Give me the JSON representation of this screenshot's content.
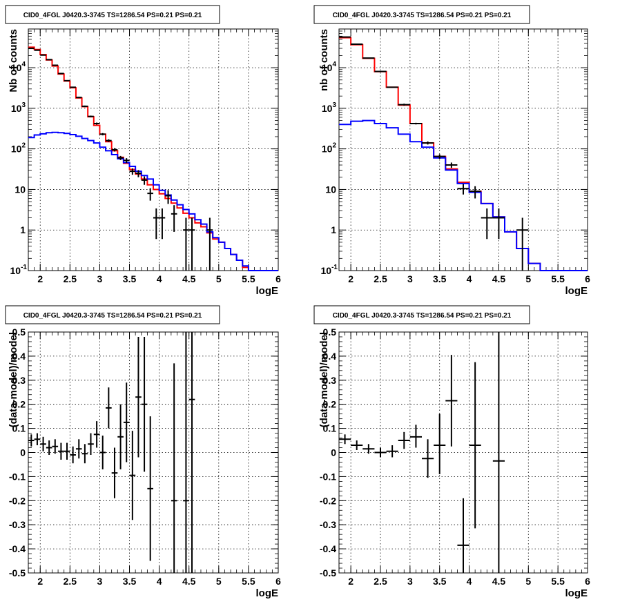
{
  "chart_data": [
    {
      "type": "line",
      "title": "CID0_4FGL J0420.3-3745 TS=1286.54 PS=0.21 PS=0.21",
      "xlabel": "logE",
      "ylabel": "Nb of counts",
      "xlim": [
        1.8,
        6.0
      ],
      "ylim": [
        0.1,
        90000
      ],
      "yscale": "log",
      "grid": true,
      "xticks": [
        "2",
        "2.5",
        "3",
        "3.5",
        "4",
        "4.5",
        "5",
        "5.5",
        "6"
      ],
      "yticks": [
        "10^-1",
        "1",
        "10",
        "10^2",
        "10^3",
        "10^4"
      ],
      "bin_width": 0.1,
      "bin_edges_start": 1.8,
      "series": [
        {
          "color": "#ff0000",
          "values": [
            32000,
            28000,
            21000,
            15500,
            11000,
            7000,
            4700,
            3200,
            1800,
            1100,
            620,
            380,
            230,
            150,
            90,
            62,
            44,
            31,
            24,
            18,
            13,
            10,
            7.8,
            6.0,
            4.6,
            3.5,
            2.6,
            2.0,
            1.5,
            1.2,
            0.85,
            0.6,
            0.5,
            0.35,
            0.25,
            0.18,
            0.12,
            0.1,
            0.1,
            0.1,
            0.1,
            0.1
          ]
        },
        {
          "color": "#0000ff",
          "values": [
            190,
            220,
            235,
            250,
            255,
            250,
            240,
            225,
            205,
            180,
            160,
            140,
            110,
            90,
            72,
            57,
            46,
            37,
            28,
            22,
            18,
            13,
            9.5,
            7.3,
            5.5,
            4.2,
            3.2,
            2.5,
            1.8,
            1.4,
            0.9,
            0.65,
            0.5,
            0.35,
            0.25,
            0.18,
            0.13,
            0.1,
            0.1,
            0.1,
            0.1,
            0.1
          ]
        }
      ],
      "points": [
        {
          "x": 1.85,
          "y": 30000,
          "ylo": 29500,
          "yhi": 30500
        },
        {
          "x": 1.95,
          "y": 27000,
          "ylo": 26600,
          "yhi": 27400
        },
        {
          "x": 2.05,
          "y": 20500,
          "ylo": 20100,
          "yhi": 20900
        },
        {
          "x": 2.15,
          "y": 15800,
          "ylo": 15500,
          "yhi": 16100
        },
        {
          "x": 2.25,
          "y": 11500,
          "ylo": 11200,
          "yhi": 11800
        },
        {
          "x": 2.35,
          "y": 7200,
          "ylo": 7000,
          "yhi": 7400
        },
        {
          "x": 2.45,
          "y": 4800,
          "ylo": 4650,
          "yhi": 4950
        },
        {
          "x": 2.55,
          "y": 3300,
          "ylo": 3200,
          "yhi": 3400
        },
        {
          "x": 2.65,
          "y": 1850,
          "ylo": 1780,
          "yhi": 1920
        },
        {
          "x": 2.75,
          "y": 1120,
          "ylo": 1070,
          "yhi": 1170
        },
        {
          "x": 2.85,
          "y": 630,
          "ylo": 600,
          "yhi": 660
        },
        {
          "x": 2.95,
          "y": 420,
          "ylo": 395,
          "yhi": 445
        },
        {
          "x": 3.05,
          "y": 230,
          "ylo": 215,
          "yhi": 245
        },
        {
          "x": 3.15,
          "y": 160,
          "ylo": 148,
          "yhi": 172
        },
        {
          "x": 3.25,
          "y": 95,
          "ylo": 86,
          "yhi": 104
        },
        {
          "x": 3.35,
          "y": 60,
          "ylo": 53,
          "yhi": 67
        },
        {
          "x": 3.45,
          "y": 52,
          "ylo": 45,
          "yhi": 59
        },
        {
          "x": 3.55,
          "y": 28,
          "ylo": 23,
          "yhi": 33
        },
        {
          "x": 3.65,
          "y": 25,
          "ylo": 20,
          "yhi": 30
        },
        {
          "x": 3.75,
          "y": 17,
          "ylo": 13,
          "yhi": 21
        },
        {
          "x": 3.85,
          "y": 8,
          "ylo": 5.3,
          "yhi": 10.7
        },
        {
          "x": 3.95,
          "y": 2,
          "ylo": 0.6,
          "yhi": 3.4
        },
        {
          "x": 4.05,
          "y": 2,
          "ylo": 0.6,
          "yhi": 3.4
        },
        {
          "x": 4.15,
          "y": 7,
          "ylo": 4.4,
          "yhi": 9.6
        },
        {
          "x": 4.25,
          "y": 2.5,
          "ylo": 0.9,
          "yhi": 4.1
        },
        {
          "x": 4.45,
          "y": 1,
          "ylo": 0.1,
          "yhi": 2.0
        },
        {
          "x": 4.55,
          "y": 1,
          "ylo": 0.1,
          "yhi": 2.0
        },
        {
          "x": 4.85,
          "y": 1,
          "ylo": 0.1,
          "yhi": 2.0
        }
      ]
    },
    {
      "type": "line",
      "title": "CID0_4FGL J0420.3-3745 TS=1286.54 PS=0.21 PS=0.21",
      "xlabel": "logE",
      "ylabel": "nb of counts",
      "xlim": [
        1.8,
        6.0
      ],
      "ylim": [
        0.1,
        90000
      ],
      "yscale": "log",
      "grid": true,
      "xticks": [
        "2",
        "2.5",
        "3",
        "3.5",
        "4",
        "4.5",
        "5",
        "5.5",
        "6"
      ],
      "yticks": [
        "10^-1",
        "1",
        "10",
        "10^2",
        "10^3",
        "10^4"
      ],
      "bin_width": 0.2,
      "bin_edges_start": 1.8,
      "series": [
        {
          "color": "#ff0000",
          "values": [
            55000,
            37000,
            17000,
            8000,
            3300,
            1200,
            420,
            140,
            65,
            32,
            15,
            9,
            4.5,
            2.1,
            0.9,
            0.35,
            0.15,
            0.1,
            0.1,
            0.1,
            0.1
          ]
        },
        {
          "color": "#0000ff",
          "values": [
            400,
            480,
            500,
            420,
            330,
            230,
            150,
            110,
            60,
            30,
            14,
            8.5,
            4.5,
            2.1,
            0.9,
            0.35,
            0.15,
            0.1,
            0.1,
            0.1,
            0.1
          ]
        }
      ],
      "points": [
        {
          "x": 1.9,
          "y": 57000,
          "ylo": 56500,
          "yhi": 57500
        },
        {
          "x": 2.1,
          "y": 38000,
          "ylo": 37600,
          "yhi": 38400
        },
        {
          "x": 2.3,
          "y": 17300,
          "ylo": 17050,
          "yhi": 17550
        },
        {
          "x": 2.5,
          "y": 8100,
          "ylo": 7900,
          "yhi": 8300
        },
        {
          "x": 2.7,
          "y": 3300,
          "ylo": 3200,
          "yhi": 3400
        },
        {
          "x": 2.9,
          "y": 1230,
          "ylo": 1160,
          "yhi": 1300
        },
        {
          "x": 3.1,
          "y": 420,
          "ylo": 400,
          "yhi": 440
        },
        {
          "x": 3.3,
          "y": 140,
          "ylo": 128,
          "yhi": 152
        },
        {
          "x": 3.5,
          "y": 65,
          "ylo": 57,
          "yhi": 73
        },
        {
          "x": 3.7,
          "y": 40,
          "ylo": 34,
          "yhi": 46
        },
        {
          "x": 3.9,
          "y": 10.5,
          "ylo": 7.5,
          "yhi": 13.5
        },
        {
          "x": 4.1,
          "y": 9,
          "ylo": 6,
          "yhi": 12
        },
        {
          "x": 4.3,
          "y": 2,
          "ylo": 0.6,
          "yhi": 3.4
        },
        {
          "x": 4.5,
          "y": 2,
          "ylo": 0.6,
          "yhi": 3.4
        },
        {
          "x": 4.9,
          "y": 1,
          "ylo": 0.1,
          "yhi": 2.0
        }
      ]
    },
    {
      "type": "scatter",
      "title": "CID0_4FGL J0420.3-3745 TS=1286.54 PS=0.21 PS=0.21",
      "xlabel": "logE",
      "ylabel": "(data-model)/model",
      "xlim": [
        1.8,
        6.0
      ],
      "ylim": [
        -0.5,
        0.5
      ],
      "grid": true,
      "xticks": [
        "2",
        "2.5",
        "3",
        "3.5",
        "4",
        "4.5",
        "5",
        "5.5",
        "6"
      ],
      "yticks": [
        "-0.5",
        "-0.4",
        "-0.3",
        "-0.2",
        "-0.1",
        "0",
        "0.1",
        "0.2",
        "0.3",
        "0.4",
        "0.5"
      ],
      "bin_width": 0.1,
      "points": [
        {
          "x": 1.85,
          "y": 0.05,
          "ylo": 0.025,
          "yhi": 0.075
        },
        {
          "x": 1.95,
          "y": 0.055,
          "ylo": 0.03,
          "yhi": 0.08
        },
        {
          "x": 2.05,
          "y": 0.035,
          "ylo": 0.005,
          "yhi": 0.065
        },
        {
          "x": 2.15,
          "y": 0.02,
          "ylo": -0.01,
          "yhi": 0.05
        },
        {
          "x": 2.25,
          "y": 0.025,
          "ylo": -0.005,
          "yhi": 0.055
        },
        {
          "x": 2.35,
          "y": 0.005,
          "ylo": -0.03,
          "yhi": 0.04
        },
        {
          "x": 2.45,
          "y": 0.005,
          "ylo": -0.03,
          "yhi": 0.04
        },
        {
          "x": 2.55,
          "y": -0.01,
          "ylo": -0.045,
          "yhi": 0.025
        },
        {
          "x": 2.65,
          "y": 0.015,
          "ylo": -0.025,
          "yhi": 0.055
        },
        {
          "x": 2.75,
          "y": -0.005,
          "ylo": -0.045,
          "yhi": 0.035
        },
        {
          "x": 2.85,
          "y": 0.035,
          "ylo": -0.01,
          "yhi": 0.08
        },
        {
          "x": 2.95,
          "y": 0.075,
          "ylo": 0.02,
          "yhi": 0.13
        },
        {
          "x": 3.05,
          "y": 0.0,
          "ylo": -0.07,
          "yhi": 0.07
        },
        {
          "x": 3.15,
          "y": 0.185,
          "ylo": 0.1,
          "yhi": 0.27
        },
        {
          "x": 3.25,
          "y": -0.085,
          "ylo": -0.19,
          "yhi": 0.02
        },
        {
          "x": 3.35,
          "y": 0.065,
          "ylo": -0.07,
          "yhi": 0.2
        },
        {
          "x": 3.45,
          "y": 0.125,
          "ylo": -0.04,
          "yhi": 0.29
        },
        {
          "x": 3.55,
          "y": -0.095,
          "ylo": -0.28,
          "yhi": 0.09
        },
        {
          "x": 3.65,
          "y": 0.23,
          "ylo": -0.02,
          "yhi": 0.48
        },
        {
          "x": 3.75,
          "y": 0.2,
          "ylo": -0.08,
          "yhi": 0.48
        },
        {
          "x": 3.85,
          "y": -0.15,
          "ylo": -0.45,
          "yhi": 0.15
        },
        {
          "x": 4.25,
          "y": -0.2,
          "ylo": -0.5,
          "yhi": 0.37
        },
        {
          "x": 4.45,
          "y": -0.2,
          "ylo": -0.5,
          "yhi": 0.5
        },
        {
          "x": 4.55,
          "y": 0.22,
          "ylo": -0.5,
          "yhi": 0.5
        }
      ]
    },
    {
      "type": "scatter",
      "title": "CID0_4FGL J0420.3-3745 TS=1286.54 PS=0.21 PS=0.21",
      "xlabel": "logE",
      "ylabel": "(data-model)/model",
      "xlim": [
        1.8,
        6.0
      ],
      "ylim": [
        -0.5,
        0.5
      ],
      "grid": true,
      "xticks": [
        "2",
        "2.5",
        "3",
        "3.5",
        "4",
        "4.5",
        "5",
        "5.5",
        "6"
      ],
      "yticks": [
        "-0.5",
        "-0.4",
        "-0.3",
        "-0.2",
        "-0.1",
        "0",
        "0.1",
        "0.2",
        "0.3",
        "0.4",
        "0.5"
      ],
      "bin_width": 0.2,
      "points": [
        {
          "x": 1.9,
          "y": 0.055,
          "ylo": 0.035,
          "yhi": 0.075
        },
        {
          "x": 2.1,
          "y": 0.03,
          "ylo": 0.01,
          "yhi": 0.05
        },
        {
          "x": 2.3,
          "y": 0.015,
          "ylo": -0.005,
          "yhi": 0.035
        },
        {
          "x": 2.5,
          "y": 0.0,
          "ylo": -0.02,
          "yhi": 0.02
        },
        {
          "x": 2.7,
          "y": 0.005,
          "ylo": -0.02,
          "yhi": 0.03
        },
        {
          "x": 2.9,
          "y": 0.05,
          "ylo": 0.015,
          "yhi": 0.085
        },
        {
          "x": 3.1,
          "y": 0.065,
          "ylo": 0.02,
          "yhi": 0.115
        },
        {
          "x": 3.3,
          "y": -0.025,
          "ylo": -0.105,
          "yhi": 0.055
        },
        {
          "x": 3.5,
          "y": 0.03,
          "ylo": -0.09,
          "yhi": 0.16
        },
        {
          "x": 3.7,
          "y": 0.215,
          "ylo": 0.025,
          "yhi": 0.405
        },
        {
          "x": 3.9,
          "y": -0.385,
          "ylo": -0.5,
          "yhi": -0.19
        },
        {
          "x": 4.1,
          "y": 0.03,
          "ylo": -0.315,
          "yhi": 0.375
        },
        {
          "x": 4.5,
          "y": -0.035,
          "ylo": -0.5,
          "yhi": 0.5
        }
      ]
    }
  ]
}
